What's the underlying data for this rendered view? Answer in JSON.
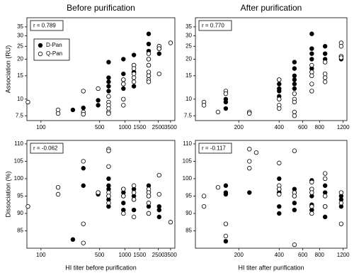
{
  "chart_data": [
    {
      "type": "scatter",
      "title": "Before purification",
      "ylabel": "Association (RU)",
      "annotation": "r = 0.789",
      "xlog": true,
      "ylog": true,
      "xlim": [
        68,
        3940
      ],
      "ylim": [
        6.9,
        41
      ],
      "xticks": [
        100,
        500,
        1000,
        1500,
        2500,
        3500
      ],
      "yticks": [
        7.5,
        10,
        15,
        20,
        25,
        30,
        35
      ],
      "legend": "upper left",
      "series": [
        {
          "name": "D-Pan",
          "color": "#000000",
          "filled": true,
          "x": [
            240,
            320,
            480,
            480,
            640,
            640,
            640,
            640,
            640,
            960,
            960,
            960,
            960,
            960,
            1280,
            1280,
            1280,
            1280,
            1920,
            1920,
            1920,
            1920,
            1920,
            1920,
            2560,
            2560,
            2560
          ],
          "values": [
            8.3,
            8.6,
            9.0,
            9.8,
            19,
            14.5,
            13.5,
            12.5,
            11.5,
            20,
            15.5,
            14,
            13,
            12,
            21.5,
            18,
            16,
            12.5,
            31,
            26,
            23,
            20,
            18,
            15,
            25,
            24,
            22
          ]
        },
        {
          "name": "Q-Pan",
          "color": "#000000",
          "filled": false,
          "x": [
            70,
            160,
            160,
            320,
            320,
            320,
            480,
            640,
            640,
            640,
            640,
            640,
            640,
            960,
            960,
            960,
            960,
            1280,
            1280,
            1280,
            1280,
            1280,
            1920,
            1920,
            1920,
            1920,
            1920,
            1920,
            1920,
            2560,
            2560,
            2560,
            3500
          ],
          "values": [
            9.5,
            8.3,
            7.8,
            8.0,
            7.7,
            11.5,
            12,
            10.5,
            9.5,
            9.0,
            8.5,
            8.0,
            7.8,
            10,
            9,
            13,
            14,
            18,
            17,
            15.5,
            14.5,
            13.5,
            22,
            20,
            18,
            16,
            15,
            14,
            13.5,
            25,
            24,
            15.5,
            26.5
          ]
        }
      ]
    },
    {
      "type": "scatter",
      "title": "After purification",
      "annotation": "r = 0.770",
      "xlog": true,
      "ylog": true,
      "xlim": [
        95,
        1280
      ],
      "ylim": [
        6.9,
        41
      ],
      "xticks": [
        200,
        400,
        600,
        800,
        1200
      ],
      "yticks": [
        7.5,
        10,
        15,
        20,
        25,
        30,
        35
      ],
      "series": [
        {
          "color": "#000000",
          "filled": true,
          "x": [
            160,
            160,
            160,
            400,
            400,
            400,
            400,
            400,
            520,
            520,
            520,
            520,
            520,
            520,
            700,
            700,
            700,
            700,
            700,
            880,
            880,
            880,
            1160,
            1160
          ],
          "values": [
            10,
            9.5,
            8.5,
            14,
            13,
            12,
            11.5,
            10.5,
            19,
            17,
            15,
            14,
            13,
            12,
            31,
            24,
            22,
            20,
            17,
            25,
            22,
            20,
            21,
            20
          ]
        },
        {
          "color": "#000000",
          "filled": false,
          "x": [
            110,
            110,
            140,
            160,
            160,
            240,
            240,
            400,
            400,
            400,
            400,
            520,
            520,
            520,
            520,
            520,
            700,
            700,
            700,
            700,
            700,
            880,
            880,
            880,
            880,
            1160,
            1160,
            1160,
            1160
          ],
          "values": [
            9.5,
            9.0,
            8.0,
            11.5,
            11,
            8.0,
            7.8,
            14,
            10,
            9,
            8.5,
            11,
            10,
            9.5,
            8,
            7.5,
            18,
            16,
            15,
            13,
            11.5,
            19,
            15.5,
            14.5,
            13.5,
            26.5,
            25,
            21,
            20.5
          ]
        }
      ]
    },
    {
      "type": "scatter",
      "xlabel": "HI titer before purification",
      "ylabel": "Dissociation (%)",
      "annotation": "r = -0.062",
      "xlog": true,
      "ylog": false,
      "xlim": [
        68,
        3940
      ],
      "ylim": [
        80,
        111
      ],
      "xticks": [
        100,
        500,
        1000,
        1500,
        2500,
        3500
      ],
      "yticks": [
        85,
        90,
        95,
        100,
        105,
        110
      ],
      "series": [
        {
          "color": "#000000",
          "filled": true,
          "x": [
            240,
            320,
            320,
            480,
            480,
            640,
            640,
            640,
            640,
            640,
            640,
            960,
            960,
            960,
            960,
            960,
            1280,
            1280,
            1280,
            1280,
            1920,
            1920,
            1920,
            1920,
            1920,
            1920,
            2560,
            2560,
            2560
          ],
          "values": [
            82.5,
            103,
            98,
            96,
            95.5,
            100,
            98,
            97,
            95,
            94,
            92,
            97,
            96,
            95,
            93,
            91,
            97,
            95,
            94,
            91,
            98,
            96,
            95,
            93,
            92,
            90,
            92,
            91,
            89
          ]
        },
        {
          "color": "#000000",
          "filled": false,
          "x": [
            70,
            160,
            160,
            320,
            320,
            320,
            480,
            640,
            640,
            640,
            640,
            640,
            640,
            960,
            960,
            960,
            1280,
            1280,
            1280,
            1280,
            1920,
            1920,
            1920,
            1920,
            1920,
            2560,
            2560,
            3500
          ],
          "values": [
            92,
            97.5,
            95.5,
            105,
            87,
            81.5,
            96,
            108.5,
            108,
            103.5,
            96,
            95,
            93,
            97,
            95,
            90,
            98,
            96,
            94,
            89,
            97,
            96,
            95,
            93,
            90,
            101,
            95.5,
            87.5
          ]
        }
      ]
    },
    {
      "type": "scatter",
      "xlabel": "HI titer after purification",
      "annotation": "r = -0.117",
      "xlog": true,
      "ylog": false,
      "xlim": [
        95,
        1280
      ],
      "ylim": [
        80,
        111
      ],
      "xticks": [
        200,
        400,
        600,
        800,
        1200
      ],
      "yticks": [
        85,
        90,
        95,
        100,
        105,
        110
      ],
      "series": [
        {
          "color": "#000000",
          "filled": true,
          "x": [
            160,
            160,
            160,
            160,
            240,
            400,
            400,
            400,
            400,
            400,
            520,
            520,
            520,
            520,
            520,
            700,
            700,
            700,
            700,
            700,
            880,
            880,
            880,
            880,
            1160,
            1160,
            1160
          ],
          "values": [
            98,
            96,
            95.5,
            82,
            96,
            100,
            97,
            96,
            92,
            90,
            97,
            96,
            95,
            93,
            91,
            99.5,
            97,
            95,
            92.5,
            91,
            98,
            96,
            92,
            89,
            95,
            94,
            92
          ]
        },
        {
          "color": "#000000",
          "filled": false,
          "x": [
            110,
            110,
            140,
            160,
            160,
            240,
            240,
            240,
            270,
            400,
            400,
            400,
            400,
            520,
            520,
            520,
            520,
            700,
            700,
            700,
            700,
            700,
            880,
            880,
            880,
            880,
            1160,
            1160,
            1160
          ],
          "values": [
            95,
            92,
            97.5,
            87,
            83.5,
            108.5,
            105,
            103,
            107.5,
            104.5,
            98,
            97,
            95.5,
            108,
            96,
            95,
            81,
            99,
            97,
            96,
            92,
            90,
            101.5,
            100,
            95,
            92,
            96,
            93,
            87
          ]
        }
      ]
    }
  ]
}
